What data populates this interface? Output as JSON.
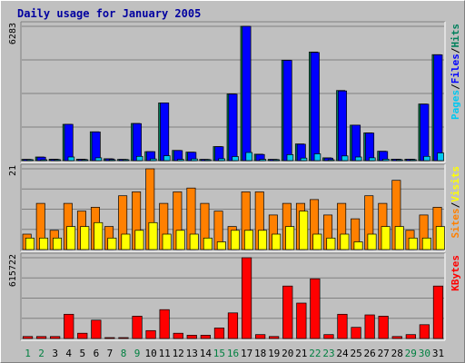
{
  "title": "Daily usage for January 2005",
  "colors": {
    "background": "#c0c0c0",
    "panel": "#c0c0c0",
    "title_text": "#0000a0",
    "hits": "#00805c",
    "files": "#0000ff",
    "pages": "#00c8f0",
    "visits": "#ffff00",
    "sites": "#ff8000",
    "kbytes": "#ff0000",
    "weekday_label": "#000000",
    "weekend_label": "#008040",
    "grid": "#808080",
    "bar_outline": "#000000"
  },
  "legends": {
    "top": [
      {
        "text": "Pages",
        "color": "#00c8f0"
      },
      {
        "text": "/",
        "color": "#000000"
      },
      {
        "text": "Files",
        "color": "#0000ff"
      },
      {
        "text": "/",
        "color": "#000000"
      },
      {
        "text": "Hits",
        "color": "#00805c"
      }
    ],
    "middle": [
      {
        "text": "Sites",
        "color": "#ff8000"
      },
      {
        "text": "/",
        "color": "#000000"
      },
      {
        "text": "Visits",
        "color": "#ffff00"
      }
    ],
    "bottom": [
      {
        "text": "KBytes",
        "color": "#ff0000"
      }
    ]
  },
  "chart_data": [
    {
      "type": "bar",
      "panel": "top",
      "y_max_label": "6283",
      "ylim": [
        0,
        6283
      ],
      "grid": true,
      "categories": [
        "1",
        "2",
        "3",
        "4",
        "5",
        "6",
        "7",
        "8",
        "9",
        "10",
        "11",
        "12",
        "13",
        "14",
        "15",
        "16",
        "17",
        "18",
        "19",
        "20",
        "21",
        "22",
        "23",
        "24",
        "25",
        "26",
        "27",
        "28",
        "29",
        "30",
        "31"
      ],
      "series": [
        {
          "name": "Hits",
          "color": "#00805c",
          "values": [
            60,
            170,
            70,
            1700,
            70,
            1350,
            90,
            60,
            1740,
            420,
            2700,
            480,
            400,
            60,
            660,
            3120,
            6283,
            300,
            60,
            4700,
            780,
            5080,
            130,
            3280,
            1660,
            1300,
            440,
            70,
            70,
            2650,
            4960
          ]
        },
        {
          "name": "Files",
          "color": "#0000ff",
          "values": [
            55,
            160,
            60,
            1700,
            60,
            1340,
            80,
            55,
            1730,
            420,
            2700,
            470,
            390,
            55,
            650,
            3110,
            6283,
            290,
            55,
            4690,
            770,
            5060,
            120,
            3260,
            1660,
            1290,
            430,
            65,
            65,
            2640,
            4950
          ]
        },
        {
          "name": "Pages",
          "color": "#00c8f0",
          "values": [
            20,
            40,
            20,
            170,
            30,
            130,
            20,
            15,
            200,
            80,
            230,
            60,
            80,
            20,
            90,
            190,
            380,
            60,
            20,
            280,
            120,
            320,
            30,
            220,
            170,
            130,
            70,
            20,
            20,
            200,
            360
          ]
        }
      ],
      "x_label_weekend": [
        "1",
        "2",
        "8",
        "9",
        "15",
        "16",
        "22",
        "23",
        "29",
        "30"
      ]
    },
    {
      "type": "bar",
      "panel": "middle",
      "y_max_label": "21",
      "ylim": [
        0,
        21
      ],
      "grid": true,
      "categories": [
        "1",
        "2",
        "3",
        "4",
        "5",
        "6",
        "7",
        "8",
        "9",
        "10",
        "11",
        "12",
        "13",
        "14",
        "15",
        "16",
        "17",
        "18",
        "19",
        "20",
        "21",
        "22",
        "23",
        "24",
        "25",
        "26",
        "27",
        "28",
        "29",
        "30",
        "31"
      ],
      "series": [
        {
          "name": "Sites",
          "color": "#ff8000",
          "values": [
            4,
            12,
            5,
            12,
            10,
            11,
            6,
            14,
            15,
            21,
            12,
            15,
            16,
            12,
            10,
            6,
            15,
            15,
            9,
            12,
            12,
            13,
            9,
            12,
            8,
            14,
            12,
            18,
            5,
            9,
            11
          ]
        },
        {
          "name": "Visits",
          "color": "#ffff00",
          "values": [
            3,
            3,
            3,
            6,
            6,
            7,
            3,
            4,
            5,
            7,
            4,
            5,
            4,
            3,
            2,
            5,
            5,
            5,
            4,
            6,
            10,
            4,
            3,
            4,
            2,
            4,
            6,
            6,
            3,
            3,
            6
          ]
        }
      ]
    },
    {
      "type": "bar",
      "panel": "bottom",
      "y_max_label": "615722",
      "ylim": [
        0,
        615722
      ],
      "grid": true,
      "categories": [
        "1",
        "2",
        "3",
        "4",
        "5",
        "6",
        "7",
        "8",
        "9",
        "10",
        "11",
        "12",
        "13",
        "14",
        "15",
        "16",
        "17",
        "18",
        "19",
        "20",
        "21",
        "22",
        "23",
        "24",
        "25",
        "26",
        "27",
        "28",
        "29",
        "30",
        "31"
      ],
      "series": [
        {
          "name": "KBytes",
          "color": "#ff0000",
          "values": [
            15000,
            15000,
            15000,
            185000,
            40000,
            140000,
            5000,
            5000,
            170000,
            60000,
            220000,
            40000,
            25000,
            25000,
            80000,
            195000,
            615722,
            30000,
            15000,
            400000,
            270000,
            455000,
            30000,
            185000,
            85000,
            180000,
            170000,
            15000,
            30000,
            105000,
            400000
          ]
        }
      ]
    }
  ]
}
